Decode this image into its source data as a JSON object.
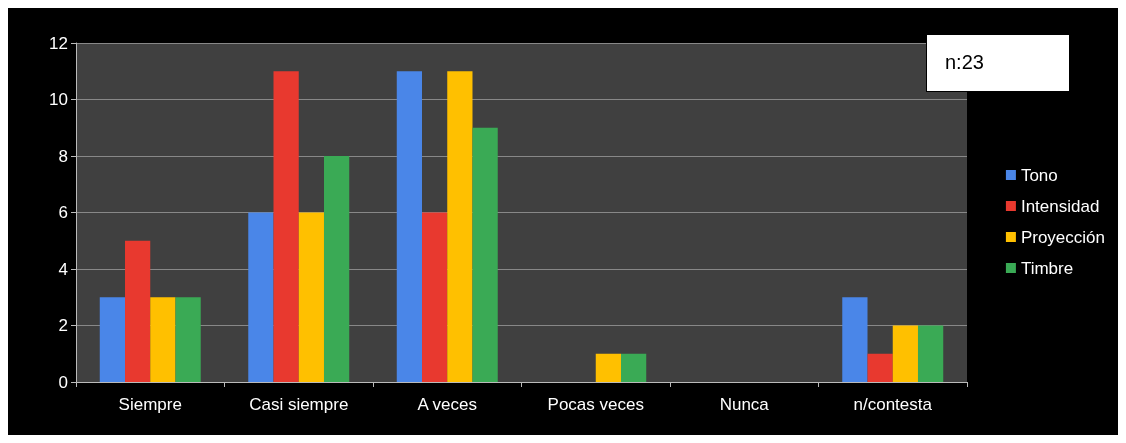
{
  "chart_data": {
    "type": "bar",
    "categories": [
      "Siempre",
      "Casi siempre",
      "A veces",
      "Pocas veces",
      "Nunca",
      "n/contesta"
    ],
    "series": [
      {
        "name": "Tono",
        "color": "#4a86e8",
        "values": [
          3,
          6,
          11,
          0,
          0,
          3
        ]
      },
      {
        "name": "Intensidad",
        "color": "#e8392f",
        "values": [
          5,
          11,
          6,
          0,
          0,
          1
        ]
      },
      {
        "name": "Proyección",
        "color": "#ffc000",
        "values": [
          3,
          6,
          11,
          1,
          0,
          2
        ]
      },
      {
        "name": "Timbre",
        "color": "#3aaa55",
        "values": [
          3,
          8,
          9,
          1,
          0,
          2
        ]
      }
    ],
    "ylim": [
      0,
      12
    ],
    "yticks": [
      0,
      2,
      4,
      6,
      8,
      10,
      12
    ],
    "grid": "y",
    "legend": "right",
    "annotations": [
      "n:23"
    ]
  }
}
